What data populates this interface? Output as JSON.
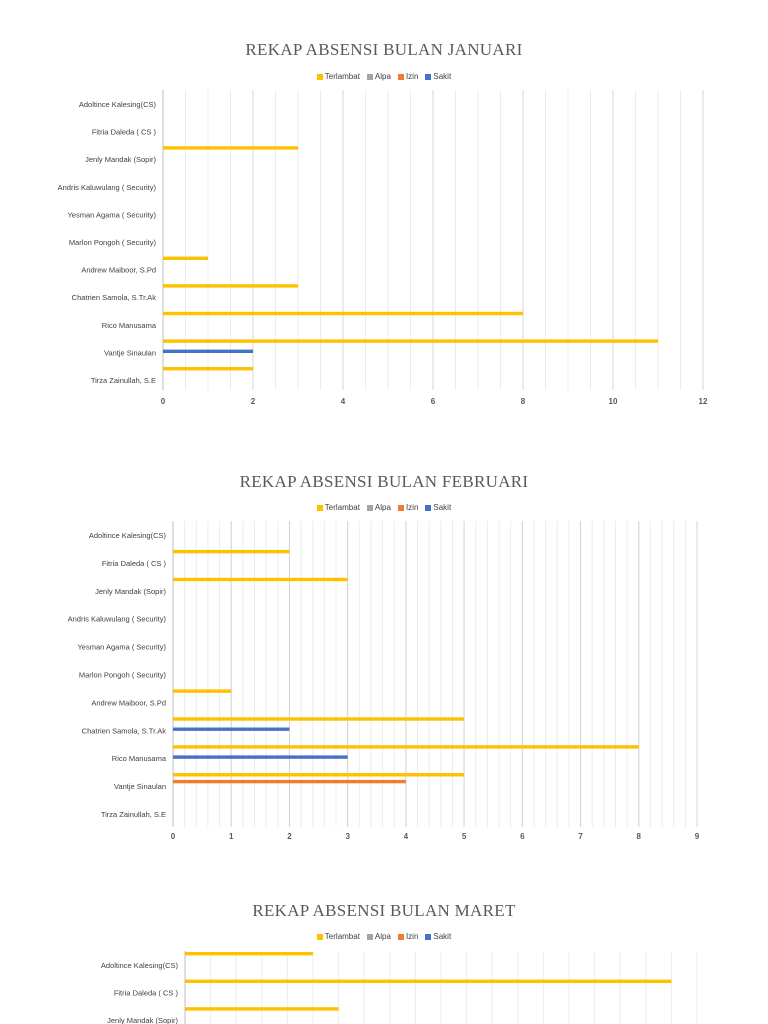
{
  "legend": {
    "series": [
      "Terlambat",
      "Alpa",
      "Izin",
      "Sakit"
    ],
    "colors": [
      "#ffc000",
      "#a5a5a5",
      "#ed7d31",
      "#4472c4"
    ]
  },
  "chart_data": [
    {
      "type": "bar",
      "orientation": "horizontal",
      "title": "REKAP ABSENSI BULAN JANUARI",
      "categories": [
        "Adoltince Kalesing(CS)",
        "Fitria Daleda ( CS )",
        "Jenly Mandak (Sopir)",
        "Andris Kaluwulang ( Security)",
        "Yesman Agama   ( Security)",
        "Marlon Pongoh ( Security)",
        "Andrew Maiboor, S.Pd",
        "Chatrien Samola, S.Tr.Ak",
        "Rico Manusama",
        "Vantje Sinaulan",
        "Tirza Zainullah, S.E"
      ],
      "series": [
        {
          "name": "Terlambat",
          "values": [
            0,
            0,
            3,
            0,
            0,
            0,
            1,
            3,
            8,
            11,
            2
          ]
        },
        {
          "name": "Alpa",
          "values": [
            0,
            0,
            0,
            0,
            0,
            0,
            0,
            0,
            0,
            0,
            0
          ]
        },
        {
          "name": "Izin",
          "values": [
            0,
            0,
            0,
            0,
            0,
            0,
            0,
            0,
            0,
            0,
            0
          ]
        },
        {
          "name": "Sakit",
          "values": [
            0,
            0,
            0,
            0,
            0,
            0,
            0,
            0,
            0,
            2,
            0
          ]
        }
      ],
      "xlim": [
        0,
        12
      ],
      "xticks": [
        0,
        2,
        4,
        6,
        8,
        10,
        12
      ],
      "minor_step": 0.5,
      "grid": true,
      "legend_position": "top"
    },
    {
      "type": "bar",
      "orientation": "horizontal",
      "title": "REKAP ABSENSI BULAN FEBRUARI",
      "categories": [
        "Adoltince Kalesing(CS)",
        "Fitria Daleda ( CS )",
        "Jenly Mandak (Sopir)",
        "Andris Kaluwulang ( Security)",
        "Yesman Agama   ( Security)",
        "Marlon Pongoh ( Security)",
        "Andrew Maiboor, S.Pd",
        "Chatrien Samola, S.Tr.Ak",
        "Rico Manusama",
        "Vantje Sinaulan",
        "Tirza Zainullah, S.E"
      ],
      "series": [
        {
          "name": "Terlambat",
          "values": [
            0,
            2,
            3,
            0,
            0,
            0,
            1,
            5,
            8,
            5,
            0
          ]
        },
        {
          "name": "Alpa",
          "values": [
            0,
            0,
            0,
            0,
            0,
            0,
            0,
            0,
            0,
            0,
            0
          ]
        },
        {
          "name": "Izin",
          "values": [
            0,
            0,
            0,
            0,
            0,
            0,
            0,
            0,
            0,
            4,
            0
          ]
        },
        {
          "name": "Sakit",
          "values": [
            0,
            0,
            0,
            0,
            0,
            0,
            0,
            2,
            3,
            0,
            0
          ]
        }
      ],
      "xlim": [
        0,
        9
      ],
      "xticks": [
        0,
        1,
        2,
        3,
        4,
        5,
        6,
        7,
        8,
        9
      ],
      "minor_step": 0.2,
      "grid": true,
      "legend_position": "top"
    },
    {
      "type": "bar",
      "orientation": "horizontal",
      "title": "REKAP ABSENSI BULAN MARET",
      "categories": [
        "Adoltince Kalesing(CS)",
        "Fitria Daleda ( CS )",
        "Jenly Mandak (Sopir)"
      ],
      "series": [
        {
          "name": "Terlambat",
          "values": [
            5,
            19,
            6
          ]
        },
        {
          "name": "Alpa",
          "values": [
            0,
            0,
            0
          ]
        },
        {
          "name": "Izin",
          "values": [
            0,
            0,
            0
          ]
        },
        {
          "name": "Sakit",
          "values": [
            0,
            0,
            0
          ]
        }
      ],
      "xlim": [
        0,
        20
      ],
      "minor_step": 1,
      "grid": true,
      "legend_position": "top"
    }
  ]
}
